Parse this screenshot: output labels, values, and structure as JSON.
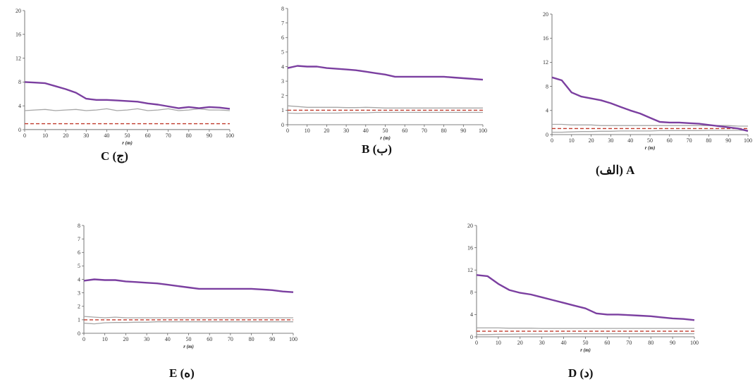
{
  "colors": {
    "observed": "#7b3fa0",
    "envelope": "#a6a6a6",
    "expected": "#c0392b",
    "axis": "#555555"
  },
  "chart_data": [
    {
      "id": "C",
      "caption": "C (ج)",
      "type": "line",
      "xlabel": "r (m)",
      "xlim": [
        0,
        100
      ],
      "ylim": [
        0,
        20
      ],
      "xticks": [
        0,
        10,
        20,
        30,
        40,
        50,
        60,
        70,
        80,
        90,
        100
      ],
      "yticks": [
        0,
        4,
        8,
        12,
        16,
        20
      ],
      "x": [
        0,
        5,
        10,
        15,
        20,
        25,
        30,
        35,
        40,
        45,
        50,
        55,
        60,
        65,
        70,
        75,
        80,
        85,
        90,
        95,
        100
      ],
      "series": [
        {
          "role": "observed",
          "values": [
            8,
            7.9,
            7.8,
            7.3,
            6.8,
            6.2,
            5.2,
            5.0,
            5.0,
            4.9,
            4.8,
            4.7,
            4.4,
            4.2,
            3.9,
            3.6,
            3.8,
            3.6,
            3.8,
            3.7,
            3.5
          ]
        },
        {
          "role": "upper",
          "values": [
            3.2,
            3.3,
            3.4,
            3.2,
            3.3,
            3.4,
            3.2,
            3.3,
            3.5,
            3.2,
            3.3,
            3.5,
            3.2,
            3.3,
            3.5,
            3.2,
            3.3,
            3.5,
            3.3,
            3.3,
            3.2
          ]
        },
        {
          "role": "lower",
          "values": [
            0.05,
            0.05,
            0.05,
            0.05,
            0.05,
            0.05,
            0.05,
            0.05,
            0.05,
            0.05,
            0.05,
            0.05,
            0.05,
            0.05,
            0.05,
            0.05,
            0.05,
            0.05,
            0.05,
            0.05,
            0.05
          ]
        },
        {
          "role": "expected",
          "values": [
            1,
            1,
            1,
            1,
            1,
            1,
            1,
            1,
            1,
            1,
            1,
            1,
            1,
            1,
            1,
            1,
            1,
            1,
            1,
            1,
            1
          ]
        }
      ]
    },
    {
      "id": "B",
      "caption": "B (ب)",
      "type": "line",
      "xlabel": "r (m)",
      "xlim": [
        0,
        100
      ],
      "ylim": [
        0,
        8
      ],
      "xticks": [
        0,
        10,
        20,
        30,
        40,
        50,
        60,
        70,
        80,
        90,
        100
      ],
      "yticks": [
        0,
        1,
        2,
        3,
        4,
        5,
        6,
        7,
        8
      ],
      "x": [
        0,
        5,
        10,
        15,
        20,
        25,
        30,
        35,
        40,
        45,
        50,
        55,
        60,
        65,
        70,
        75,
        80,
        85,
        90,
        95,
        100
      ],
      "series": [
        {
          "role": "observed",
          "values": [
            3.9,
            4.05,
            4.0,
            4.0,
            3.9,
            3.85,
            3.8,
            3.75,
            3.65,
            3.55,
            3.45,
            3.3,
            3.3,
            3.3,
            3.3,
            3.3,
            3.3,
            3.25,
            3.2,
            3.15,
            3.1
          ]
        },
        {
          "role": "upper",
          "values": [
            1.3,
            1.25,
            1.2,
            1.2,
            1.2,
            1.2,
            1.18,
            1.18,
            1.2,
            1.18,
            1.15,
            1.15,
            1.15,
            1.15,
            1.15,
            1.15,
            1.15,
            1.15,
            1.15,
            1.15,
            1.15
          ]
        },
        {
          "role": "lower",
          "values": [
            0.8,
            0.78,
            0.8,
            0.8,
            0.8,
            0.8,
            0.82,
            0.82,
            0.82,
            0.85,
            0.85,
            0.85,
            0.85,
            0.85,
            0.85,
            0.85,
            0.85,
            0.85,
            0.85,
            0.85,
            0.85
          ]
        },
        {
          "role": "expected",
          "values": [
            1,
            1,
            1,
            1,
            1,
            1,
            1,
            1,
            1,
            1,
            1,
            1,
            1,
            1,
            1,
            1,
            1,
            1,
            1,
            1,
            1
          ]
        }
      ]
    },
    {
      "id": "A",
      "caption": "(الف) A",
      "type": "line",
      "xlabel": "r (m)",
      "xlim": [
        0,
        100
      ],
      "ylim": [
        0,
        20
      ],
      "xticks": [
        0,
        10,
        20,
        30,
        40,
        50,
        60,
        70,
        80,
        90,
        100
      ],
      "yticks": [
        0,
        4,
        8,
        12,
        16,
        20
      ],
      "x": [
        0,
        5,
        10,
        15,
        20,
        25,
        30,
        35,
        40,
        45,
        50,
        55,
        60,
        65,
        70,
        75,
        80,
        85,
        90,
        95,
        100
      ],
      "series": [
        {
          "role": "observed",
          "values": [
            9.5,
            9.0,
            7.0,
            6.3,
            6.0,
            5.7,
            5.2,
            4.6,
            4.0,
            3.5,
            2.8,
            2.1,
            2.0,
            2.0,
            1.9,
            1.8,
            1.6,
            1.4,
            1.2,
            1.0,
            0.6
          ]
        },
        {
          "role": "upper",
          "values": [
            1.7,
            1.7,
            1.6,
            1.6,
            1.6,
            1.5,
            1.5,
            1.5,
            1.5,
            1.5,
            1.5,
            1.5,
            1.5,
            1.5,
            1.5,
            1.5,
            1.5,
            1.5,
            1.5,
            1.4,
            1.4
          ]
        },
        {
          "role": "lower",
          "values": [
            0.4,
            0.4,
            0.45,
            0.5,
            0.5,
            0.55,
            0.55,
            0.6,
            0.6,
            0.6,
            0.6,
            0.65,
            0.65,
            0.65,
            0.65,
            0.65,
            0.7,
            0.7,
            0.7,
            0.7,
            0.7
          ]
        },
        {
          "role": "expected",
          "values": [
            1,
            1,
            1,
            1,
            1,
            1,
            1,
            1,
            1,
            1,
            1,
            1,
            1,
            1,
            1,
            1,
            1,
            1,
            1,
            1,
            1
          ]
        }
      ]
    },
    {
      "id": "E",
      "caption": "E (ه)",
      "type": "line",
      "xlabel": "r (m)",
      "xlim": [
        0,
        100
      ],
      "ylim": [
        0,
        8
      ],
      "xticks": [
        0,
        10,
        20,
        30,
        40,
        50,
        60,
        70,
        80,
        90,
        100
      ],
      "yticks": [
        0,
        1,
        2,
        3,
        4,
        5,
        6,
        7,
        8
      ],
      "x": [
        0,
        5,
        10,
        15,
        20,
        25,
        30,
        35,
        40,
        45,
        50,
        55,
        60,
        65,
        70,
        75,
        80,
        85,
        90,
        95,
        100
      ],
      "series": [
        {
          "role": "observed",
          "values": [
            3.9,
            4.0,
            3.95,
            3.95,
            3.85,
            3.8,
            3.75,
            3.7,
            3.6,
            3.5,
            3.4,
            3.3,
            3.3,
            3.3,
            3.3,
            3.3,
            3.3,
            3.25,
            3.2,
            3.1,
            3.05
          ]
        },
        {
          "role": "upper",
          "values": [
            1.25,
            1.2,
            1.15,
            1.2,
            1.15,
            1.15,
            1.15,
            1.15,
            1.15,
            1.15,
            1.15,
            1.15,
            1.15,
            1.15,
            1.15,
            1.15,
            1.15,
            1.15,
            1.15,
            1.15,
            1.15
          ]
        },
        {
          "role": "lower",
          "values": [
            0.75,
            0.7,
            0.78,
            0.8,
            0.8,
            0.82,
            0.82,
            0.85,
            0.85,
            0.85,
            0.85,
            0.85,
            0.85,
            0.85,
            0.85,
            0.85,
            0.85,
            0.85,
            0.85,
            0.85,
            0.85
          ]
        },
        {
          "role": "expected",
          "values": [
            1,
            1,
            1,
            1,
            1,
            1,
            1,
            1,
            1,
            1,
            1,
            1,
            1,
            1,
            1,
            1,
            1,
            1,
            1,
            1,
            1
          ]
        }
      ]
    },
    {
      "id": "D",
      "caption": "D (د)",
      "type": "line",
      "xlabel": "r (m)",
      "xlim": [
        0,
        100
      ],
      "ylim": [
        0,
        20
      ],
      "xticks": [
        0,
        10,
        20,
        30,
        40,
        50,
        60,
        70,
        80,
        90,
        100
      ],
      "yticks": [
        0,
        4,
        8,
        12,
        16,
        20
      ],
      "x": [
        0,
        5,
        10,
        15,
        20,
        25,
        30,
        35,
        40,
        45,
        50,
        55,
        60,
        65,
        70,
        75,
        80,
        85,
        90,
        95,
        100
      ],
      "series": [
        {
          "role": "observed",
          "values": [
            11.1,
            10.9,
            9.5,
            8.4,
            7.9,
            7.6,
            7.1,
            6.6,
            6.1,
            5.6,
            5.1,
            4.2,
            4.0,
            4.0,
            3.9,
            3.8,
            3.7,
            3.5,
            3.3,
            3.2,
            3.0
          ]
        },
        {
          "role": "upper",
          "values": [
            1.6,
            1.6,
            1.6,
            1.55,
            1.55,
            1.55,
            1.5,
            1.5,
            1.5,
            1.5,
            1.5,
            1.5,
            1.5,
            1.5,
            1.5,
            1.5,
            1.5,
            1.5,
            1.5,
            1.5,
            1.5
          ]
        },
        {
          "role": "lower",
          "values": [
            0.4,
            0.4,
            0.45,
            0.45,
            0.5,
            0.5,
            0.5,
            0.5,
            0.55,
            0.55,
            0.55,
            0.55,
            0.55,
            0.55,
            0.55,
            0.55,
            0.55,
            0.55,
            0.55,
            0.55,
            0.55
          ]
        },
        {
          "role": "expected",
          "values": [
            1,
            1,
            1,
            1,
            1,
            1,
            1,
            1,
            1,
            1,
            1,
            1,
            1,
            1,
            1,
            1,
            1,
            1,
            1,
            1,
            1
          ]
        }
      ]
    }
  ]
}
